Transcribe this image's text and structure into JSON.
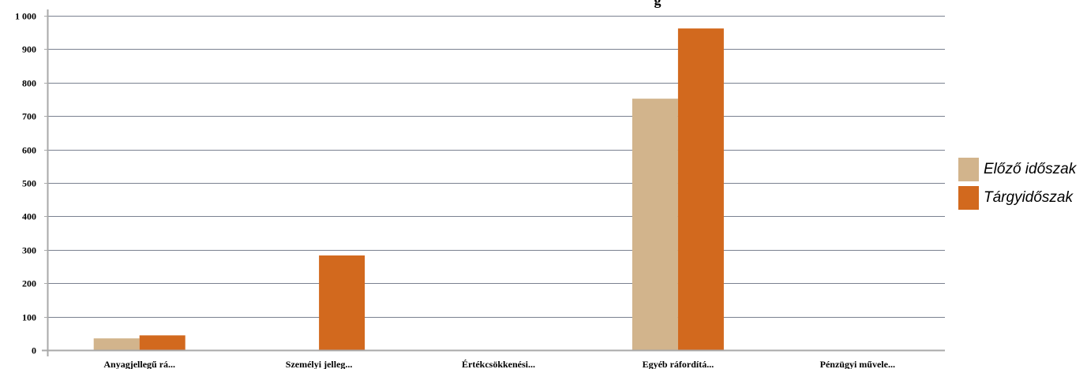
{
  "chart_data": {
    "type": "bar",
    "title": "g",
    "categories": [
      "Anyagjellegű rá...",
      "Személyi jelleg...",
      "Értékcsökkenési...",
      "Egyéb ráfordítá...",
      "Pénzügyi művele..."
    ],
    "series": [
      {
        "name": "Előző időszak",
        "color": "#d2b48c",
        "values": [
          35,
          0,
          0,
          752,
          0
        ]
      },
      {
        "name": "Tárgyidőszak",
        "color": "#d2691e",
        "values": [
          44,
          283,
          0,
          962,
          0
        ]
      }
    ],
    "ylim": [
      0,
      1000
    ],
    "yticks": [
      0,
      100,
      200,
      300,
      400,
      500,
      600,
      700,
      800,
      900,
      1000
    ],
    "ytick_labels": [
      "0",
      "100",
      "200",
      "300",
      "400",
      "500",
      "600",
      "700",
      "800",
      "900",
      "1 000"
    ],
    "xlabel": "",
    "ylabel": "",
    "grid": true,
    "legend_position": "right"
  },
  "colors": {
    "gridline": "#7a8190",
    "axis": "#a9a9a9",
    "background": "#ffffff"
  }
}
